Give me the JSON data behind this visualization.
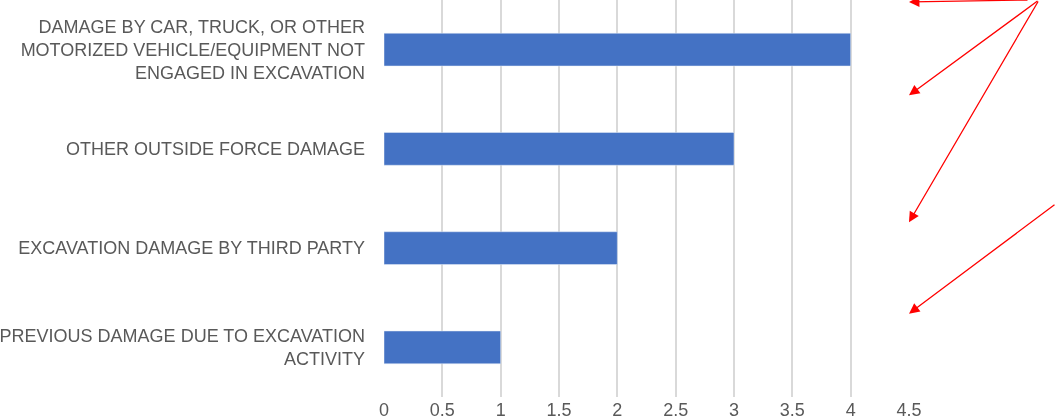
{
  "chart_data": {
    "type": "bar",
    "orientation": "horizontal",
    "categories": [
      "DAMAGE BY CAR, TRUCK, OR OTHER MOTORIZED VEHICLE/EQUIPMENT NOT ENGAGED IN EXCAVATION",
      "OTHER OUTSIDE FORCE DAMAGE",
      "EXCAVATION DAMAGE BY THIRD PARTY",
      "PREVIOUS DAMAGE DUE TO EXCAVATION ACTIVITY"
    ],
    "values": [
      4,
      3,
      2,
      1
    ],
    "color": "#4472c4",
    "xlim": [
      0,
      4.5
    ],
    "xticks": [
      0,
      0.5,
      1,
      1.5,
      2,
      2.5,
      3,
      3.5,
      4,
      4.5
    ],
    "grid": "x"
  }
}
